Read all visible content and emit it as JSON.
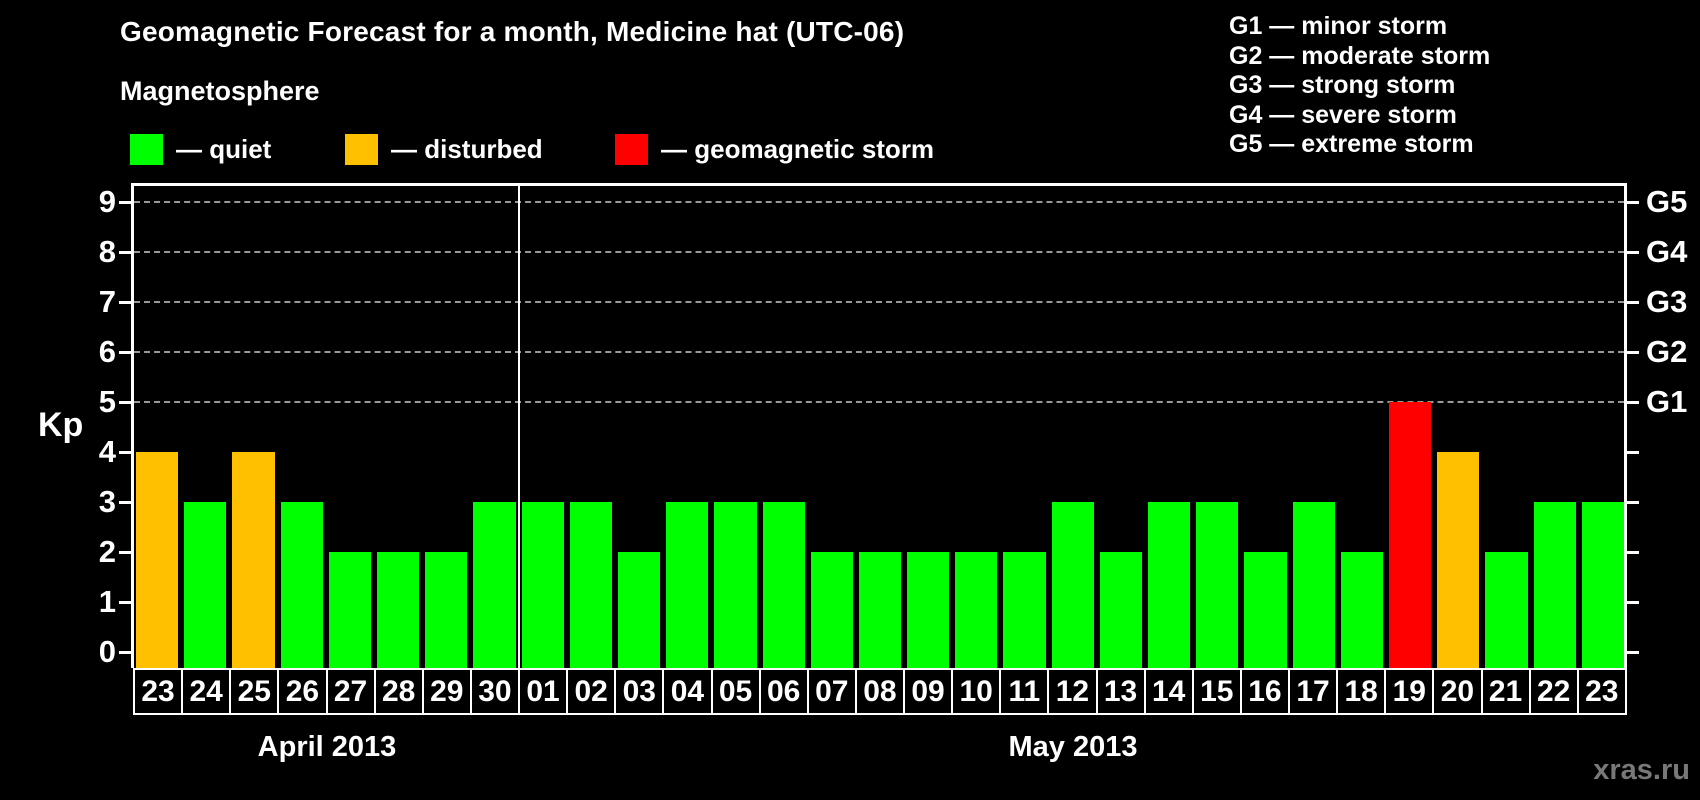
{
  "header": {
    "title": "Geomagnetic Forecast for a month, Medicine hat (UTC-06)",
    "subtitle": "Magnetosphere"
  },
  "legend": {
    "items": [
      {
        "name": "quiet",
        "label": "— quiet",
        "color": "#00ff00"
      },
      {
        "name": "disturbed",
        "label": "— disturbed",
        "color": "#ffc000"
      },
      {
        "name": "storm",
        "label": "— geomagnetic storm",
        "color": "#ff0000"
      }
    ]
  },
  "g_legend": [
    "G1 — minor storm",
    "G2 — moderate storm",
    "G3 — strong storm",
    "G4 — severe storm",
    "G5 — extreme storm"
  ],
  "watermark": "xras.ru",
  "chart_data": {
    "type": "bar",
    "title": "Geomagnetic Forecast for a month, Medicine hat (UTC-06)",
    "ylabel": "Kp",
    "ylim": [
      0,
      9
    ],
    "yticks": [
      0,
      1,
      2,
      3,
      4,
      5,
      6,
      7,
      8,
      9
    ],
    "grid_values": [
      5,
      6,
      7,
      8,
      9
    ],
    "grid": "dashed horizontal lines only at G-storm levels 5-9",
    "legend_position": "top-left and top-right",
    "categories": [
      "23",
      "24",
      "25",
      "26",
      "27",
      "28",
      "29",
      "30",
      "01",
      "02",
      "03",
      "04",
      "05",
      "06",
      "07",
      "08",
      "09",
      "10",
      "11",
      "12",
      "13",
      "14",
      "15",
      "16",
      "17",
      "18",
      "19",
      "20",
      "21",
      "22",
      "23"
    ],
    "values": [
      4,
      3,
      4,
      3,
      2,
      2,
      2,
      3,
      3,
      3,
      2,
      3,
      3,
      3,
      2,
      2,
      2,
      2,
      2,
      3,
      2,
      3,
      3,
      2,
      3,
      2,
      5,
      4,
      2,
      3,
      3
    ],
    "statuses": [
      "disturbed",
      "quiet",
      "disturbed",
      "quiet",
      "quiet",
      "quiet",
      "quiet",
      "quiet",
      "quiet",
      "quiet",
      "quiet",
      "quiet",
      "quiet",
      "quiet",
      "quiet",
      "quiet",
      "quiet",
      "quiet",
      "quiet",
      "quiet",
      "quiet",
      "quiet",
      "quiet",
      "quiet",
      "quiet",
      "quiet",
      "storm",
      "disturbed",
      "quiet",
      "quiet",
      "quiet"
    ],
    "months": [
      {
        "label": "April 2013",
        "days": 8
      },
      {
        "label": "May 2013",
        "days": 23
      }
    ],
    "right_axis": [
      {
        "label": "G1",
        "value": 5
      },
      {
        "label": "G2",
        "value": 6
      },
      {
        "label": "G3",
        "value": 7
      },
      {
        "label": "G4",
        "value": 8
      },
      {
        "label": "G5",
        "value": 9
      }
    ],
    "colors": {
      "quiet": "#00ff00",
      "disturbed": "#ffc000",
      "storm": "#ff0000"
    }
  }
}
